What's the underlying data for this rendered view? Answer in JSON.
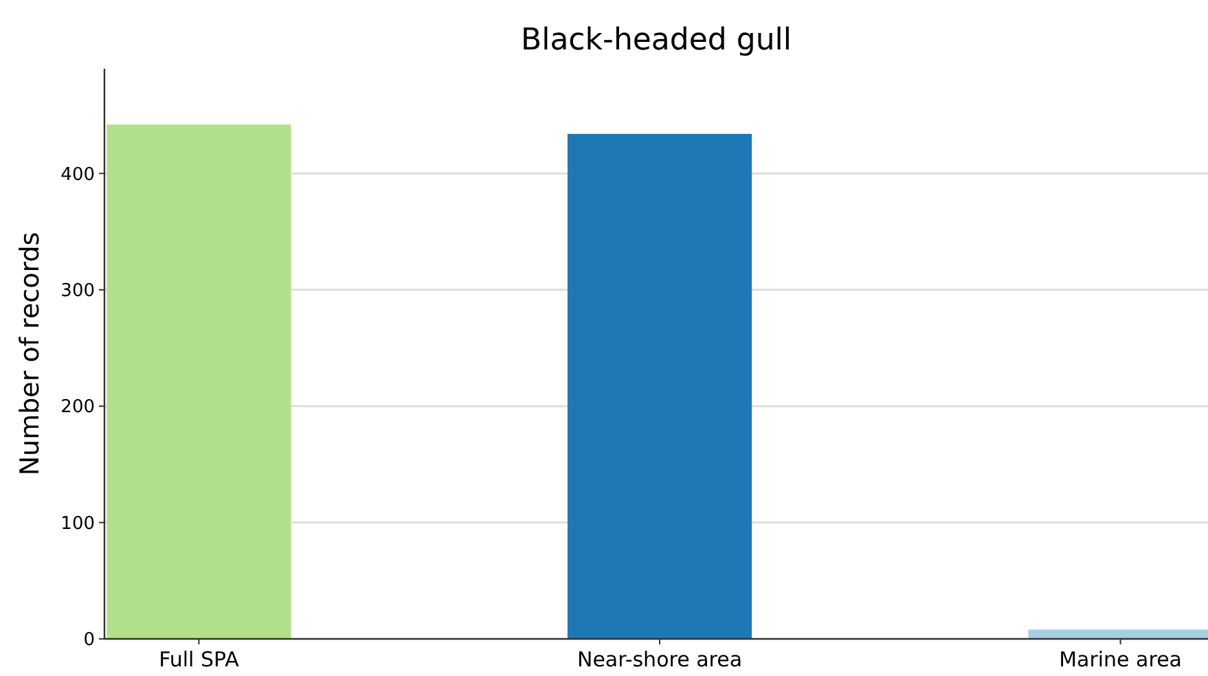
{
  "chart_data": {
    "type": "bar",
    "title": "Black-headed gull",
    "ylabel": "Number of records",
    "categories": [
      "Full SPA",
      "Near-shore area",
      "Marine area"
    ],
    "values": [
      442,
      434,
      8
    ],
    "colors": [
      "#b2df8a",
      "#1f78b4",
      "#a6cee3"
    ],
    "ylim": [
      0,
      490
    ],
    "yticks": [
      0,
      100,
      200,
      300,
      400
    ],
    "grid": "y"
  }
}
